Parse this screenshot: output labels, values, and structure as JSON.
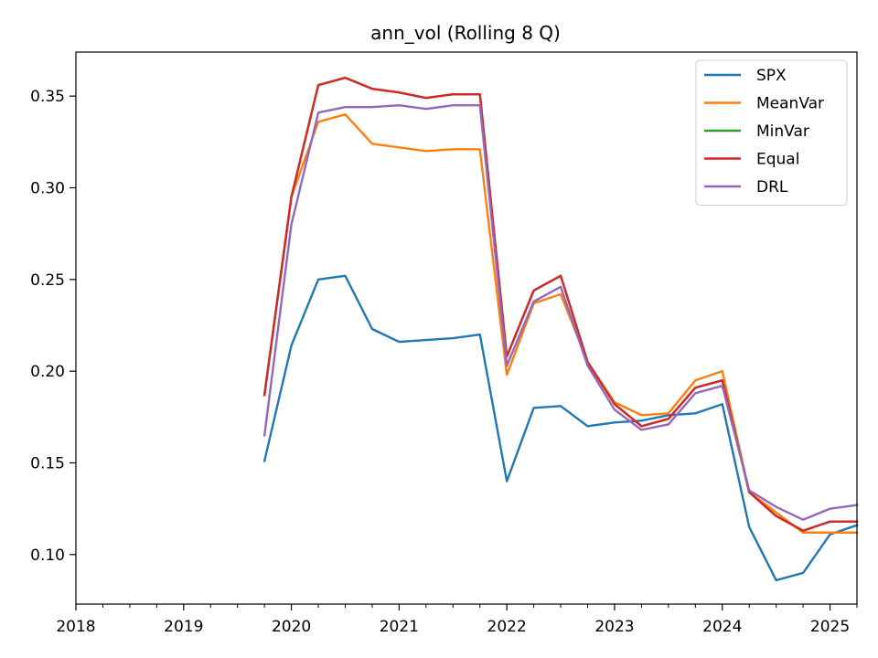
{
  "chart_data": {
    "type": "line",
    "title": "ann_vol (Rolling 8 Q)",
    "xlabel": "",
    "ylabel": "",
    "xlim": [
      2018.0,
      2025.25
    ],
    "ylim": [
      0.073,
      0.374
    ],
    "x_ticks": [
      2018,
      2019,
      2020,
      2021,
      2022,
      2023,
      2024,
      2025
    ],
    "x_tick_labels": [
      "2018",
      "2019",
      "2020",
      "2021",
      "2022",
      "2023",
      "2024",
      "2025"
    ],
    "y_ticks": [
      0.1,
      0.15,
      0.2,
      0.25,
      0.3,
      0.35
    ],
    "y_tick_labels": [
      "0.10",
      "0.15",
      "0.20",
      "0.25",
      "0.30",
      "0.35"
    ],
    "grid": false,
    "legend_position": "top-right",
    "x": [
      2019.75,
      2020.0,
      2020.25,
      2020.5,
      2020.75,
      2021.0,
      2021.25,
      2021.5,
      2021.75,
      2022.0,
      2022.25,
      2022.5,
      2022.75,
      2023.0,
      2023.25,
      2023.5,
      2023.75,
      2024.0,
      2024.25,
      2024.5,
      2024.75,
      2025.0,
      2025.25
    ],
    "series": [
      {
        "name": "SPX",
        "color": "#1f77b4",
        "values": [
          0.151,
          0.214,
          0.25,
          0.252,
          0.223,
          0.216,
          0.217,
          0.218,
          0.22,
          0.14,
          0.18,
          0.181,
          0.17,
          0.172,
          0.173,
          0.176,
          0.177,
          0.182,
          0.115,
          0.086,
          0.09,
          0.111,
          0.116
        ]
      },
      {
        "name": "MeanVar",
        "color": "#ff7f0e",
        "values": [
          0.187,
          0.295,
          0.336,
          0.34,
          0.324,
          0.322,
          0.32,
          0.321,
          0.321,
          0.198,
          0.237,
          0.242,
          0.205,
          0.183,
          0.176,
          0.177,
          0.195,
          0.2,
          0.134,
          0.123,
          0.112,
          0.112,
          0.112
        ]
      },
      {
        "name": "MinVar",
        "color": "#2ca02c",
        "values": [
          0.187,
          0.295,
          0.356,
          0.36,
          0.354,
          0.352,
          0.349,
          0.351,
          0.351,
          0.208,
          0.244,
          0.252,
          0.205,
          0.182,
          0.17,
          0.174,
          0.191,
          0.195,
          0.134,
          0.121,
          0.113,
          0.118,
          0.118
        ]
      },
      {
        "name": "Equal",
        "color": "#d62728",
        "values": [
          0.187,
          0.295,
          0.356,
          0.36,
          0.354,
          0.352,
          0.349,
          0.351,
          0.351,
          0.208,
          0.244,
          0.252,
          0.205,
          0.182,
          0.17,
          0.174,
          0.191,
          0.195,
          0.134,
          0.121,
          0.113,
          0.118,
          0.118
        ]
      },
      {
        "name": "DRL",
        "color": "#9467bd",
        "values": [
          0.165,
          0.28,
          0.341,
          0.344,
          0.344,
          0.345,
          0.343,
          0.345,
          0.345,
          0.203,
          0.238,
          0.246,
          0.203,
          0.179,
          0.168,
          0.171,
          0.188,
          0.192,
          0.135,
          0.126,
          0.119,
          0.125,
          0.127
        ]
      }
    ]
  }
}
